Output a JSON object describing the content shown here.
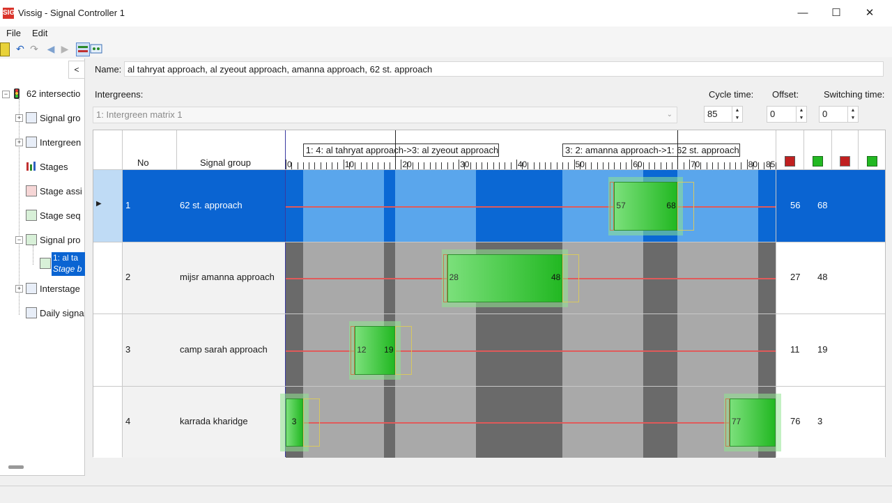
{
  "window": {
    "title": "Vissig - Signal Controller 1",
    "icon": "vissig-app-icon",
    "icon_text": "SIG",
    "controls": {
      "minimize": "—",
      "maximize": "☐",
      "close": "✕"
    }
  },
  "menu": {
    "items": [
      "File",
      "Edit"
    ]
  },
  "toolbar": {
    "icons": [
      "run-icon",
      "undo-icon",
      "redo-icon",
      "back-arrow-icon",
      "forward-arrow-icon",
      "signal-program-view-icon",
      "intergreen-view-icon"
    ]
  },
  "tree": {
    "collapse_label": "<",
    "root": {
      "label": "62 intersectio",
      "icon": "traffic-light-icon"
    },
    "items": [
      {
        "label": "Signal gro",
        "expander": "+",
        "icon": "signal-group-icon"
      },
      {
        "label": "Intergreen",
        "expander": "+",
        "icon": "intergreen-icon"
      },
      {
        "label": "Stages",
        "expander": "",
        "icon": "stages-icon"
      },
      {
        "label": "Stage assi",
        "expander": "",
        "icon": "stage-assignment-icon"
      },
      {
        "label": "Stage seq",
        "expander": "",
        "icon": "stage-sequence-icon"
      },
      {
        "label": "Signal pro",
        "expander": "−",
        "icon": "signal-program-icon"
      },
      {
        "label": "Interstage",
        "expander": "+",
        "icon": "interstage-icon"
      },
      {
        "label": "Daily signa",
        "expander": "",
        "icon": "daily-signal-icon"
      }
    ],
    "selected_child": {
      "line1": "1: al ta",
      "line2": "Stage b"
    }
  },
  "form": {
    "name_label": "Name:",
    "name_value": "al tahryat approach, al zyeout approach, amanna approach, 62 st. approach",
    "intergreens_label": "Intergreens:",
    "intergreens_value": "1: Intergreen matrix 1",
    "cycle_label": "Cycle time:",
    "cycle_value": "85",
    "offset_label": "Offset:",
    "offset_value": "0",
    "switching_label": "Switching time:",
    "switching_value": "0"
  },
  "grid": {
    "col_no": "No",
    "col_group": "Signal group",
    "cycle": 85,
    "ticks": [
      0,
      10,
      20,
      30,
      40,
      50,
      60,
      70,
      80
    ],
    "cycle_end_label": "85",
    "tick_labels": [
      "0",
      "10",
      "20",
      "30",
      "40",
      "50",
      "60",
      "70",
      "80",
      "85"
    ],
    "interstages": [
      {
        "label": "1: 4: al tahryat approach->3: al zyeout approach",
        "from": 3,
        "to": 19
      },
      {
        "label": "3: 2: amanna approach->1: 62 st. approach",
        "from": 48,
        "to": 68
      }
    ],
    "dark_bands": [
      [
        0,
        3
      ],
      [
        17,
        19
      ],
      [
        33,
        48
      ],
      [
        62,
        68
      ],
      [
        82,
        85
      ]
    ],
    "legend_icons": [
      "red-green-end-icon",
      "green-start-icon",
      "red-start-icon",
      "green-end-icon"
    ],
    "rows": [
      {
        "no": "1",
        "name": "62 st. approach",
        "start": 57,
        "end": 68,
        "start_label": "57",
        "end_label": "68",
        "col_start": "56",
        "col_end": "68",
        "selected": true,
        "marker": "▶"
      },
      {
        "no": "2",
        "name": "mijsr amanna approach",
        "start": 28,
        "end": 48,
        "start_label": "28",
        "end_label": "48",
        "col_start": "27",
        "col_end": "48",
        "selected": false
      },
      {
        "no": "3",
        "name": "camp sarah approach",
        "start": 12,
        "end": 19,
        "start_label": "12",
        "end_label": "19",
        "col_start": "11",
        "col_end": "19",
        "selected": false
      },
      {
        "no": "4",
        "name": "karrada kharidge",
        "start": 77,
        "end": 3,
        "start_label": "77",
        "end_label": "3",
        "col_start": "76",
        "col_end": "3",
        "selected": false
      }
    ]
  },
  "colors": {
    "selection": "#0a64d2",
    "green": "#22b822",
    "red_line": "#e05a5a",
    "amber": "#d8c860"
  }
}
